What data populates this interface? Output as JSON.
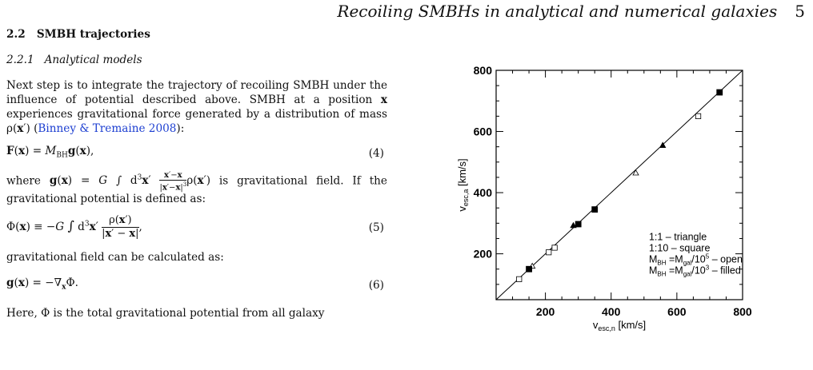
{
  "header": {
    "running_title": "Recoiling SMBHs in analytical and numerical galaxies",
    "page_number": "5"
  },
  "section": {
    "number": "2.2",
    "title": "SMBH trajectories"
  },
  "subsection": {
    "number": "2.2.1",
    "title": "Analytical models"
  },
  "text": {
    "p1": "Next step is to integrate the trajectory of recoiling SMBH under the influence of potential described above. SMBH at a position x experiences gravitational force generated by a distribution of mass ρ(x′) (Binney & Tremaine 2008):",
    "p1_pre": "Next step is to integrate the trajectory of recoiling SMBH under the influence of potential described above. SMBH at a position ",
    "p1_x": "x",
    "p1_mid": " experiences gravitational force generated by a distribution of mass ρ(",
    "p1_xp": "x",
    "p1_post": "′) (",
    "p1_cite": "Binney & Tremaine 2008",
    "p1_end": "):",
    "p2_pre": "where ",
    "p2_post": " is gravitational field. If the gravitational potential is defined as:",
    "p3": "gravitational field can be calculated as:",
    "p4": "Here, Φ is the total gravitational potential from all galaxy"
  },
  "equations": [
    {
      "number": "(4)"
    },
    {
      "number": "(5)"
    },
    {
      "number": "(6)"
    }
  ],
  "chart_data": {
    "type": "scatter",
    "xlabel_main": "v",
    "xlabel_sub": "esc,n",
    "xlabel_unit": " [km/s]",
    "ylabel_main": "v",
    "ylabel_sub": "esc,a",
    "ylabel_unit": " [km/s]",
    "xlim": [
      50,
      800
    ],
    "ylim": [
      50,
      800
    ],
    "xticks": [
      "200",
      "400",
      "600",
      "800"
    ],
    "yticks": [
      "200",
      "400",
      "600",
      "800"
    ],
    "legend": [
      "1:1 – triangle",
      "1:10 – square",
      "M_BH =M_gal/10^5 – open",
      "M_BH =M_gal/10^3 – filled"
    ],
    "legend_placement": "bottom-right",
    "diagonal_line": [
      [
        50,
        50
      ],
      [
        800,
        800
      ]
    ],
    "series": [
      {
        "marker": "triangle",
        "fill": "open",
        "x": [
          160,
          475
        ],
        "y": [
          160,
          465
        ]
      },
      {
        "marker": "triangle",
        "fill": "filled",
        "x": [
          285,
          557
        ],
        "y": [
          293,
          555
        ]
      },
      {
        "marker": "square",
        "fill": "open",
        "x": [
          120,
          210,
          228,
          665
        ],
        "y": [
          117,
          205,
          220,
          650
        ]
      },
      {
        "marker": "square",
        "fill": "filled",
        "x": [
          150,
          300,
          350,
          730
        ],
        "y": [
          150,
          297,
          345,
          728
        ]
      }
    ]
  }
}
